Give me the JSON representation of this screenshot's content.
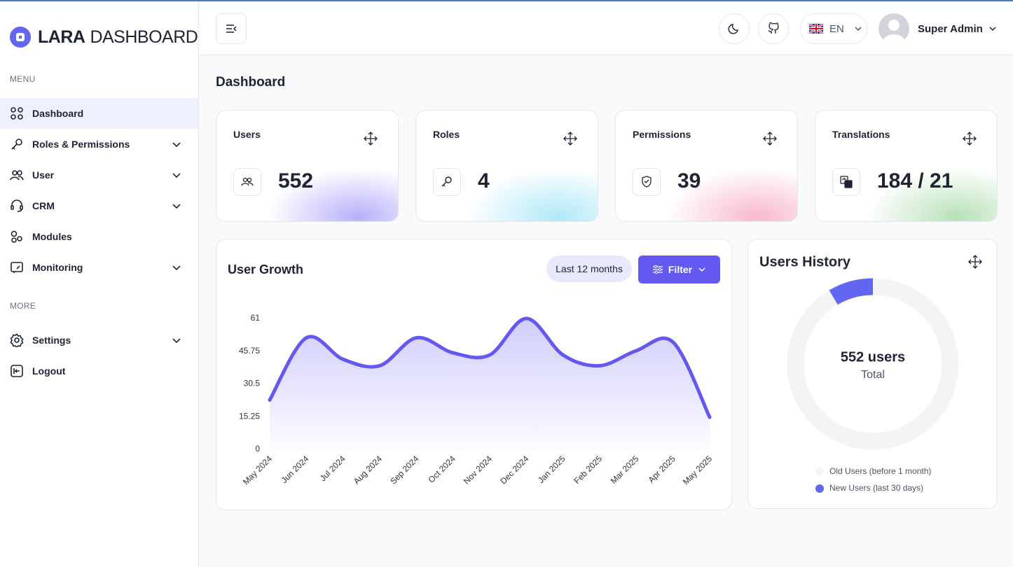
{
  "sidebar": {
    "logo_bold": "LARA",
    "logo_light": "DASHBOARD",
    "menu_label": "MENU",
    "menu": [
      "Dashboard",
      "Roles & Permissions",
      "User",
      "CRM",
      "Modules",
      "Monitoring"
    ],
    "more_label": "MORE",
    "more": [
      "Settings",
      "Logout"
    ]
  },
  "header": {
    "language": "EN",
    "user": "Super Admin"
  },
  "page_title": "Dashboard",
  "stats": [
    {
      "label": "Users",
      "value": 552
    },
    {
      "label": "Roles",
      "value": 4
    },
    {
      "label": "Permissions",
      "value": 39
    },
    {
      "label": "Translations",
      "value": "184 / 21"
    }
  ],
  "growth_controls": {
    "range": "Last 12 months",
    "filter": "Filter"
  },
  "chart_data": [
    {
      "type": "line",
      "title": "User Growth",
      "color": "#6359f0",
      "categories": [
        "May 2024",
        "Jun 2024",
        "Jul 2024",
        "Aug 2024",
        "Sep 2024",
        "Oct 2024",
        "Nov 2024",
        "Dec 2024",
        "Jan 2025",
        "Feb 2025",
        "Mar 2025",
        "Apr 2025",
        "May 2025"
      ],
      "values": [
        23,
        52,
        42,
        39,
        52,
        45,
        44,
        61,
        44,
        39,
        46,
        50,
        15
      ],
      "ylim": [
        0,
        61
      ],
      "yticks": [
        0,
        15.25,
        30.5,
        45.75,
        61
      ]
    },
    {
      "type": "pie",
      "title": "Users History",
      "center_label": "552 users",
      "center_sublabel": "Total",
      "categories": [
        "Old Users (before 1 month)",
        "New Users (last 30 days)"
      ],
      "values": [
        505,
        47
      ],
      "colors": [
        "#f3f4f6",
        "#6366f1"
      ]
    }
  ]
}
